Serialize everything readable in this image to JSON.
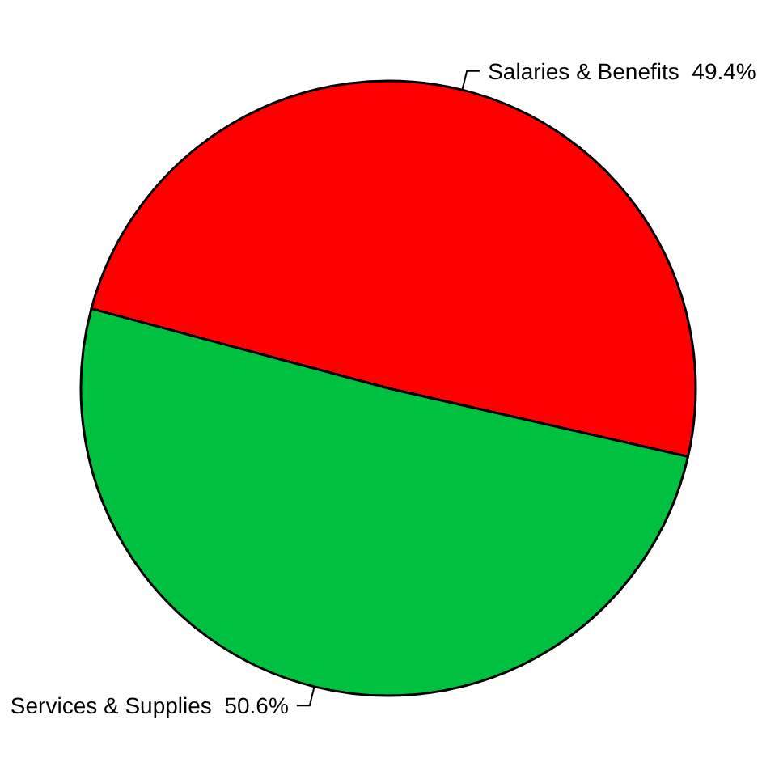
{
  "chart_data": {
    "type": "pie",
    "categories": [
      "Salaries & Benefits",
      "Services & Supplies"
    ],
    "values": [
      49.4,
      50.6
    ],
    "colors": [
      "#ff0000",
      "#00c040"
    ],
    "value_labels": [
      "49.4%",
      "50.6%"
    ],
    "legend": false
  }
}
